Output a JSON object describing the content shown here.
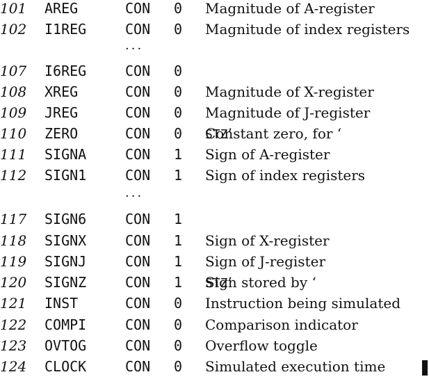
{
  "rows": [
    {
      "num": "101",
      "label": "AREG",
      "op": "CON",
      "val": "0",
      "comment": "Magnitude of A-register"
    },
    {
      "num": "102",
      "label": "I1REG",
      "op": "CON",
      "val": "0",
      "comment": "Magnitude of index registers"
    },
    {
      "num": "107",
      "label": "I6REG",
      "op": "CON",
      "val": "0",
      "comment": ""
    },
    {
      "num": "108",
      "label": "XREG",
      "op": "CON",
      "val": "0",
      "comment": "Magnitude of X-register"
    },
    {
      "num": "109",
      "label": "JREG",
      "op": "CON",
      "val": "0",
      "comment": "Magnitude of J-register"
    },
    {
      "num": "110",
      "label": "ZERO",
      "op": "CON",
      "val": "0",
      "comment_pre": "Constant zero, for ‘",
      "comment_code": "STZ",
      "comment_post": "’"
    },
    {
      "num": "111",
      "label": "SIGNA",
      "op": "CON",
      "val": "1",
      "comment": "Sign of A-register"
    },
    {
      "num": "112",
      "label": "SIGN1",
      "op": "CON",
      "val": "1",
      "comment": "Sign of index registers"
    },
    {
      "num": "117",
      "label": "SIGN6",
      "op": "CON",
      "val": "1",
      "comment": ""
    },
    {
      "num": "118",
      "label": "SIGNX",
      "op": "CON",
      "val": "1",
      "comment": "Sign of X-register"
    },
    {
      "num": "119",
      "label": "SIGNJ",
      "op": "CON",
      "val": "1",
      "comment": "Sign of J-register"
    },
    {
      "num": "120",
      "label": "SIGNZ",
      "op": "CON",
      "val": "1",
      "comment_pre": "Sign stored by ‘",
      "comment_code": "STZ",
      "comment_post": "’"
    },
    {
      "num": "121",
      "label": "INST",
      "op": "CON",
      "val": "0",
      "comment": "Instruction being simulated"
    },
    {
      "num": "122",
      "label": "COMPI",
      "op": "CON",
      "val": "0",
      "comment": "Comparison indicator"
    },
    {
      "num": "123",
      "label": "OVTOG",
      "op": "CON",
      "val": "0",
      "comment": "Overflow toggle"
    },
    {
      "num": "124",
      "label": "CLOCK",
      "op": "CON",
      "val": "0",
      "comment": "Simulated execution time"
    }
  ],
  "ellipsis": "···"
}
